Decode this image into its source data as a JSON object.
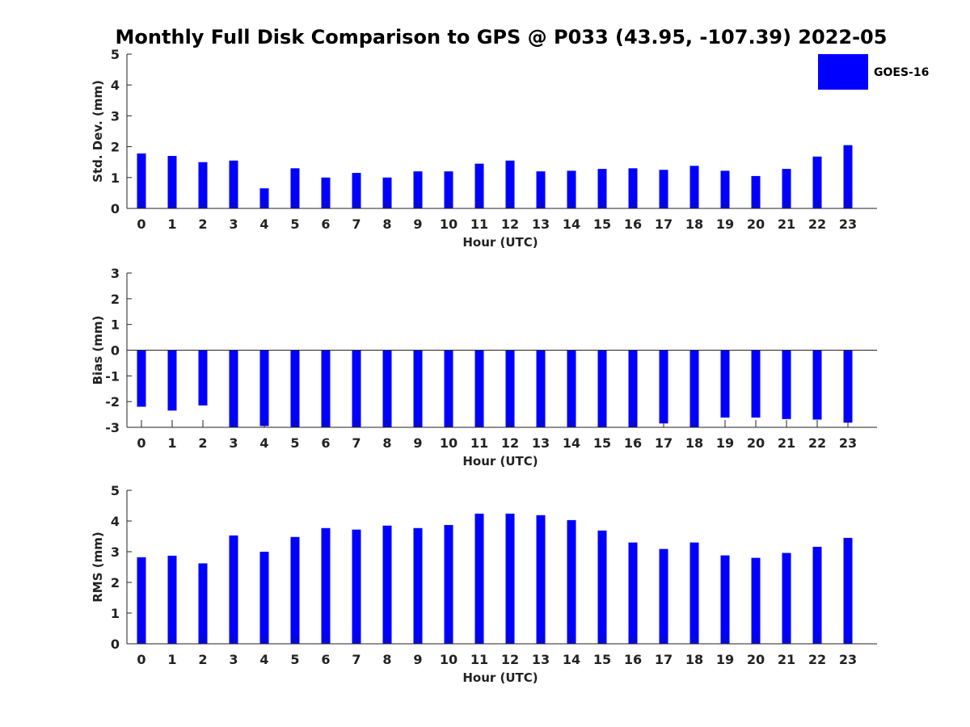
{
  "title": "Monthly Full Disk Comparison to GPS @ P033 (43.95, -107.39) 2022-05",
  "legend": {
    "label": "GOES-16",
    "placement": "top-right"
  },
  "colors": {
    "bar": "#0000ff",
    "axis": "#222222"
  },
  "chart_data": [
    {
      "type": "bar",
      "categories": [
        "0",
        "1",
        "2",
        "3",
        "4",
        "5",
        "6",
        "7",
        "8",
        "9",
        "10",
        "11",
        "12",
        "13",
        "14",
        "15",
        "16",
        "17",
        "18",
        "19",
        "20",
        "21",
        "22",
        "23"
      ],
      "series": [
        {
          "name": "GOES-16",
          "values": [
            1.78,
            1.7,
            1.5,
            1.55,
            0.65,
            1.3,
            1.0,
            1.15,
            1.0,
            1.2,
            1.2,
            1.45,
            1.55,
            1.2,
            1.22,
            1.28,
            1.3,
            1.25,
            1.38,
            1.22,
            1.05,
            1.28,
            1.68,
            2.05
          ]
        }
      ],
      "xlabel": "Hour (UTC)",
      "ylabel": "Std. Dev. (mm)",
      "ylim": [
        0,
        5
      ],
      "yticks": [
        0,
        1,
        2,
        3,
        4,
        5
      ],
      "grid": false
    },
    {
      "type": "bar",
      "categories": [
        "0",
        "1",
        "2",
        "3",
        "4",
        "5",
        "6",
        "7",
        "8",
        "9",
        "10",
        "11",
        "12",
        "13",
        "14",
        "15",
        "16",
        "17",
        "18",
        "19",
        "20",
        "21",
        "22",
        "23"
      ],
      "series": [
        {
          "name": "GOES-16",
          "values": [
            -2.2,
            -2.35,
            -2.15,
            -3.0,
            -2.95,
            -3.0,
            -3.0,
            -3.0,
            -3.0,
            -3.0,
            -3.0,
            -3.0,
            -3.0,
            -3.0,
            -3.0,
            -3.0,
            -3.0,
            -2.85,
            -3.0,
            -2.62,
            -2.62,
            -2.68,
            -2.7,
            -2.82
          ]
        }
      ],
      "xlabel": "Hour (UTC)",
      "ylabel": "Bias (mm)",
      "ylim": [
        -3,
        3
      ],
      "yticks": [
        -3,
        -2,
        -1,
        0,
        1,
        2,
        3
      ],
      "grid": false
    },
    {
      "type": "bar",
      "categories": [
        "0",
        "1",
        "2",
        "3",
        "4",
        "5",
        "6",
        "7",
        "8",
        "9",
        "10",
        "11",
        "12",
        "13",
        "14",
        "15",
        "16",
        "17",
        "18",
        "19",
        "20",
        "21",
        "22",
        "23"
      ],
      "series": [
        {
          "name": "GOES-16",
          "values": [
            2.82,
            2.87,
            2.62,
            3.53,
            3.0,
            3.48,
            3.77,
            3.72,
            3.85,
            3.77,
            3.87,
            4.24,
            4.24,
            4.19,
            4.03,
            3.69,
            3.3,
            3.09,
            3.3,
            2.88,
            2.8,
            2.96,
            3.16,
            3.45
          ]
        }
      ],
      "xlabel": "Hour (UTC)",
      "ylabel": "RMS (mm)",
      "ylim": [
        0,
        5
      ],
      "yticks": [
        0,
        1,
        2,
        3,
        4,
        5
      ],
      "grid": false
    }
  ]
}
